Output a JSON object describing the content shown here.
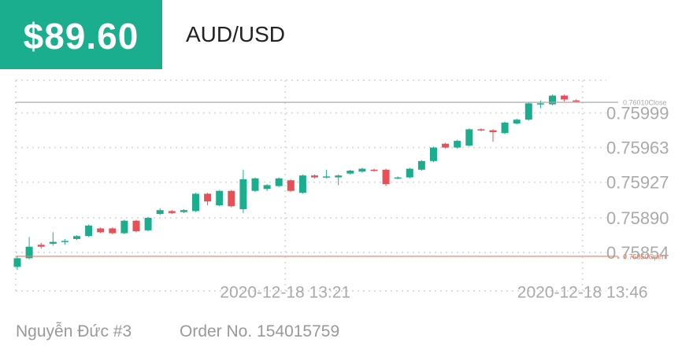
{
  "header": {
    "price": "$89.60",
    "pair": "AUD/USD"
  },
  "chart_data": {
    "type": "candlestick",
    "categories": [
      null,
      null,
      null,
      null,
      null,
      null,
      null,
      null,
      null,
      null,
      null,
      null,
      null,
      null,
      null,
      null,
      null,
      null,
      null,
      null,
      null,
      null,
      "2020-12-18 13:21",
      null,
      null,
      null,
      null,
      null,
      null,
      null,
      null,
      null,
      null,
      null,
      null,
      null,
      null,
      null,
      null,
      null,
      null,
      null,
      null,
      null,
      null,
      null,
      null,
      "2020-12-18 13:46"
    ],
    "open": [
      0.75839,
      0.75848,
      0.75862,
      0.75863,
      0.75865,
      0.75868,
      0.75871,
      0.75879,
      0.75879,
      0.75874,
      0.75887,
      0.75877,
      0.75894,
      0.75897,
      0.75896,
      0.75897,
      0.75915,
      0.75903,
      0.75918,
      0.75899,
      0.75918,
      0.7592,
      0.75923,
      0.75929,
      0.75916,
      0.75934,
      0.75933,
      0.75932,
      0.75936,
      0.75938,
      0.7594,
      0.7594,
      0.75932,
      0.75932,
      0.7594,
      0.75949,
      0.75967,
      0.75963,
      0.75965,
      0.75982,
      0.75981,
      0.75978,
      0.75988,
      0.75992,
      0.76008,
      0.76008,
      0.76017,
      0.76012
    ],
    "high": [
      0.7585,
      0.7587,
      0.75864,
      0.75875,
      0.75868,
      0.75872,
      0.75883,
      0.7588,
      0.7588,
      0.75888,
      0.75888,
      0.75891,
      0.759,
      0.75898,
      0.75899,
      0.75916,
      0.75916,
      0.75919,
      0.75919,
      0.7594,
      0.75932,
      0.75925,
      0.75932,
      0.7593,
      0.75935,
      0.75935,
      0.7594,
      0.75935,
      0.7594,
      0.75942,
      0.75941,
      0.75941,
      0.75933,
      0.75942,
      0.7595,
      0.75964,
      0.75968,
      0.75971,
      0.75983,
      0.75983,
      0.75982,
      0.7599,
      0.75993,
      0.7601,
      0.76012,
      0.76018,
      0.76018,
      0.76013
    ],
    "low": [
      0.75836,
      0.75847,
      0.75858,
      0.75861,
      0.75862,
      0.75867,
      0.7587,
      0.75874,
      0.75873,
      0.75873,
      0.75875,
      0.75876,
      0.75893,
      0.75894,
      0.75895,
      0.75896,
      0.75903,
      0.75902,
      0.75901,
      0.75895,
      0.75917,
      0.75918,
      0.75922,
      0.75917,
      0.75915,
      0.75931,
      0.75931,
      0.75924,
      0.75935,
      0.75937,
      0.75938,
      0.75923,
      0.7593,
      0.75931,
      0.75939,
      0.75948,
      0.75962,
      0.75962,
      0.75964,
      0.7598,
      0.75969,
      0.75977,
      0.75987,
      0.75991,
      0.76004,
      0.76007,
      0.76011,
      0.7601
    ],
    "close": [
      0.75848,
      0.7586,
      0.7586,
      0.75865,
      0.75866,
      0.75871,
      0.75882,
      0.75875,
      0.75874,
      0.75887,
      0.75876,
      0.7589,
      0.75898,
      0.75895,
      0.75898,
      0.75915,
      0.75907,
      0.75918,
      0.75902,
      0.7593,
      0.75931,
      0.75924,
      0.75931,
      0.75918,
      0.75934,
      0.75932,
      0.75933,
      0.75934,
      0.75939,
      0.75941,
      0.75939,
      0.75925,
      0.75932,
      0.75941,
      0.75949,
      0.75963,
      0.75963,
      0.7597,
      0.75982,
      0.75981,
      0.75979,
      0.75989,
      0.75992,
      0.76009,
      0.76009,
      0.76017,
      0.76013,
      0.76011
    ],
    "up_color": "#1aae8f",
    "down_color": "#e84f57",
    "ylim": [
      0.75814,
      0.76033
    ],
    "yticks": [
      0.75854,
      {
        "value": 0.7589,
        "label": "0.75890"
      },
      0.75927,
      0.75963,
      0.75999
    ],
    "grid": true,
    "reference_lines": [
      {
        "value": 0.7601,
        "label": "0.76010Close",
        "color": "#aaaaaa"
      },
      {
        "value": 0.7585,
        "label": "0.75850Open",
        "color": "#f07a5a"
      }
    ]
  },
  "footer": {
    "name": "Nguyễn Đức #3",
    "order": "Order No. 154015759"
  }
}
